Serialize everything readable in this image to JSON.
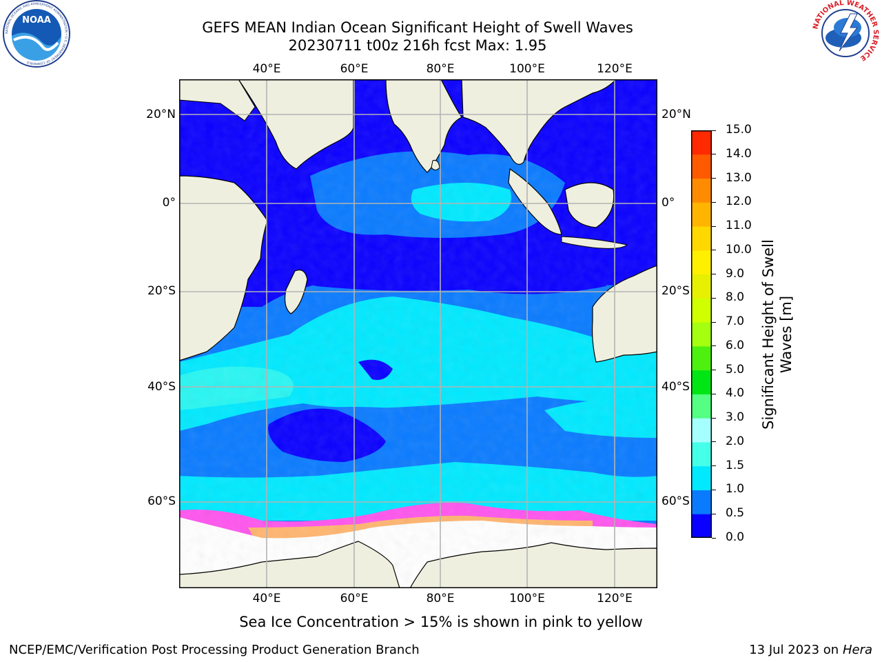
{
  "title_line1": "GEFS MEAN Indian Ocean Significant Height of Swell Waves",
  "title_line2": "20230711 t00z 216h fcst   Max: 1.95",
  "map": {
    "lon_ticks": [
      "40°E",
      "60°E",
      "80°E",
      "100°E",
      "120°E"
    ],
    "lat_ticks": [
      "20°N",
      "0°",
      "20°S",
      "40°S",
      "60°S"
    ],
    "lon_range": [
      20,
      130
    ],
    "lat_range": [
      -72,
      28
    ],
    "gridlines": true
  },
  "colorbar": {
    "label": "Significant Height of Swell Waves [m]",
    "ticks": [
      "0.0",
      "0.5",
      "1.0",
      "1.5",
      "2.0",
      "3.0",
      "4.0",
      "5.0",
      "6.0",
      "7.0",
      "8.0",
      "9.0",
      "10.0",
      "11.0",
      "12.0",
      "13.0",
      "14.0",
      "15.0"
    ],
    "colors": [
      "#0a00ff",
      "#0a7bff",
      "#00e9ff",
      "#45ffe9",
      "#a6ffff",
      "#54ff84",
      "#00e514",
      "#4ef010",
      "#a4ff10",
      "#d0ff00",
      "#e6f000",
      "#fff000",
      "#ffd800",
      "#ffb400",
      "#ff8c00",
      "#ff5a00",
      "#ff2a00",
      "#ff0000"
    ]
  },
  "annotation": "Sea Ice Concentration > 15% is shown in pink to yellow",
  "footer_left": "NCEP/EMC/Verification Post Processing Product Generation Branch",
  "footer_right_date": "13 Jul 2023 on ",
  "footer_right_host": "Hera",
  "logos": {
    "noaa_text": "NOAA",
    "noaa_ring_text": "NATIONAL OCEANIC AND ATMOSPHERIC ADMINISTRATION • U.S. DEPARTMENT OF COMMERCE",
    "nws_ring_text": "NATIONAL WEATHER SERVICE"
  }
}
